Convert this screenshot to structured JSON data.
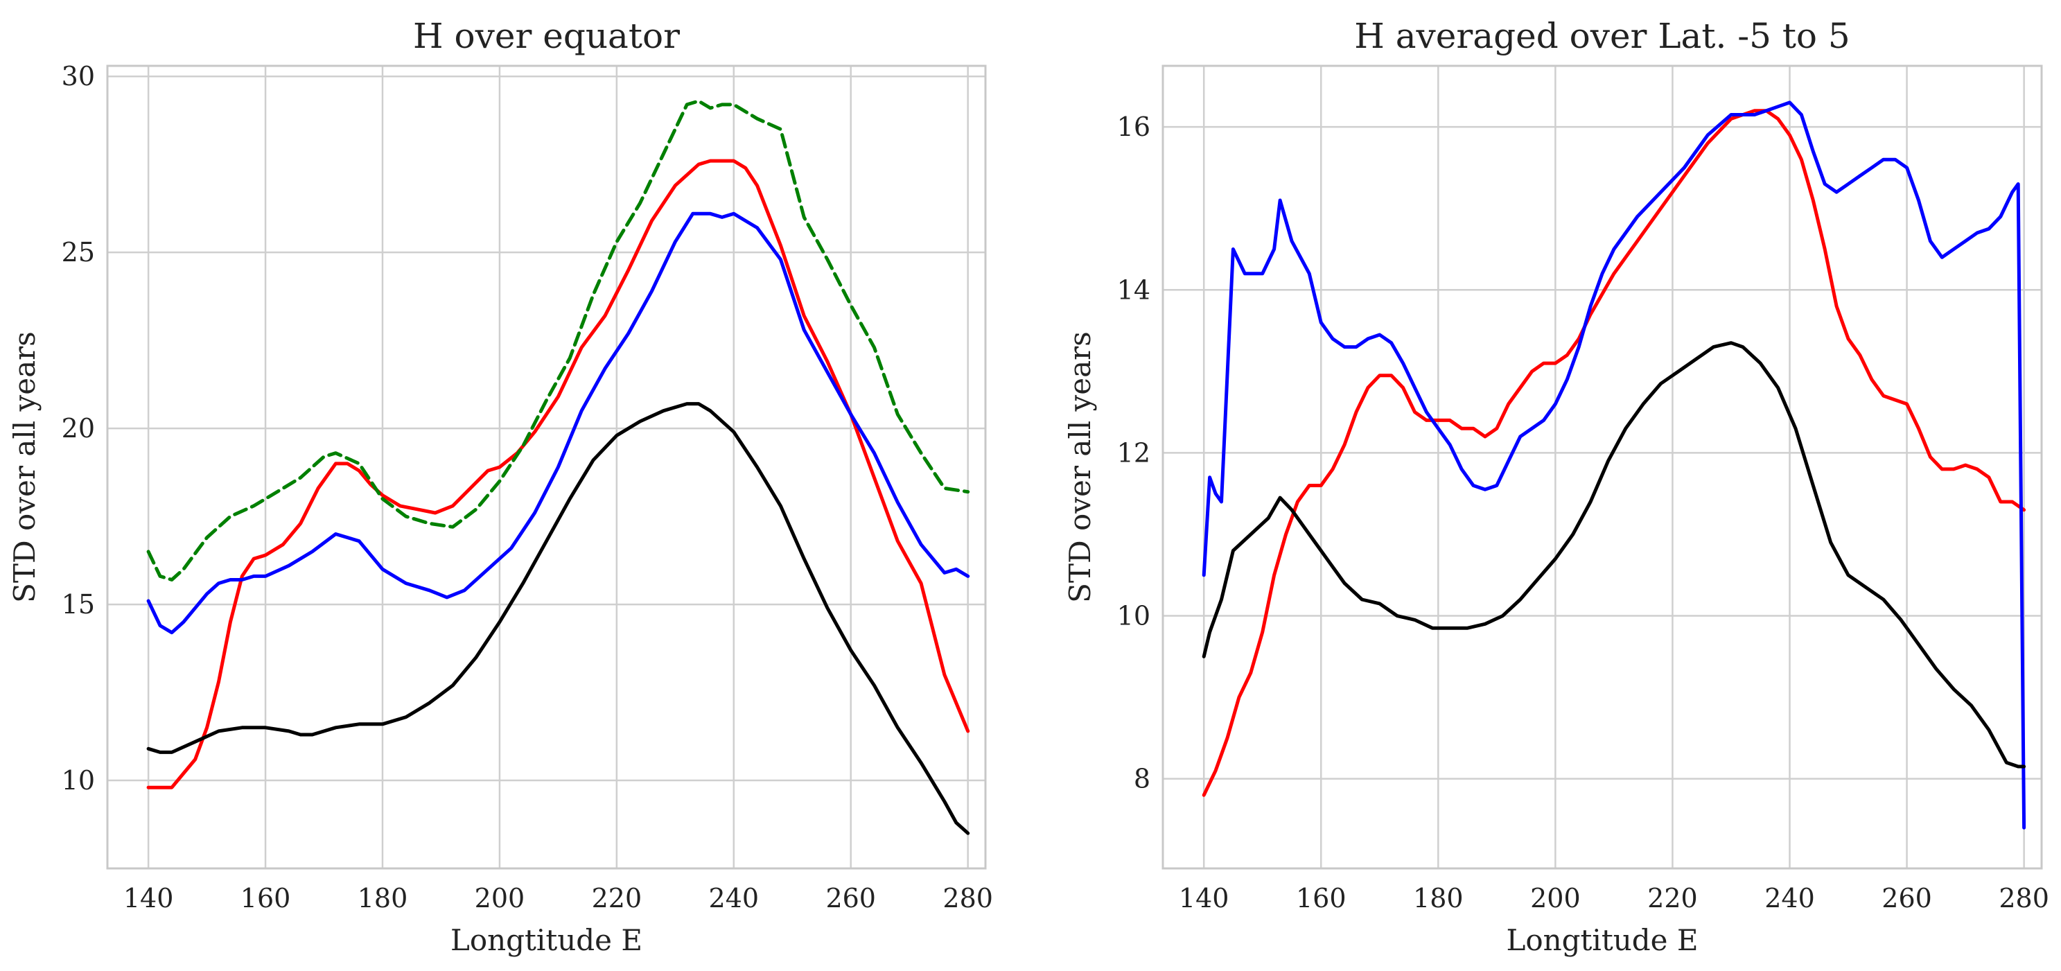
{
  "chart_data": [
    {
      "type": "line",
      "title": "H over equator",
      "xlabel": "Longtitude E",
      "ylabel": "STD over all years",
      "xlim": [
        133,
        283
      ],
      "ylim": [
        7.5,
        30.3
      ],
      "xticks": [
        140,
        160,
        180,
        200,
        220,
        240,
        260,
        280
      ],
      "yticks": [
        10,
        15,
        20,
        25,
        30
      ],
      "grid": true,
      "series": [
        {
          "name": "red",
          "color": "#ff0000",
          "dash": "solid",
          "x": [
            140,
            142,
            144,
            146,
            148,
            150,
            152,
            154,
            156,
            158,
            160,
            163,
            166,
            169,
            172,
            174,
            176,
            178,
            180,
            183,
            186,
            189,
            192,
            195,
            198,
            200,
            203,
            206,
            210,
            214,
            218,
            222,
            226,
            230,
            234,
            236,
            238,
            240,
            242,
            244,
            248,
            252,
            256,
            260,
            264,
            268,
            272,
            276,
            280
          ],
          "y": [
            9.8,
            9.8,
            9.8,
            10.2,
            10.6,
            11.5,
            12.8,
            14.5,
            15.8,
            16.3,
            16.4,
            16.7,
            17.3,
            18.3,
            19.0,
            19.0,
            18.8,
            18.4,
            18.1,
            17.8,
            17.7,
            17.6,
            17.8,
            18.3,
            18.8,
            18.9,
            19.3,
            19.9,
            20.9,
            22.3,
            23.2,
            24.5,
            25.9,
            26.9,
            27.5,
            27.6,
            27.6,
            27.6,
            27.4,
            26.9,
            25.2,
            23.2,
            21.9,
            20.4,
            18.6,
            16.8,
            15.6,
            13.0,
            11.4
          ]
        },
        {
          "name": "blue",
          "color": "#0000ff",
          "dash": "solid",
          "x": [
            140,
            142,
            144,
            146,
            148,
            150,
            152,
            154,
            156,
            158,
            160,
            164,
            168,
            172,
            176,
            180,
            184,
            188,
            191,
            194,
            198,
            202,
            206,
            210,
            214,
            218,
            222,
            226,
            230,
            233,
            236,
            238,
            240,
            242,
            244,
            248,
            252,
            256,
            260,
            264,
            268,
            272,
            276,
            278,
            280
          ],
          "y": [
            15.1,
            14.4,
            14.2,
            14.5,
            14.9,
            15.3,
            15.6,
            15.7,
            15.7,
            15.8,
            15.8,
            16.1,
            16.5,
            17.0,
            16.8,
            16.0,
            15.6,
            15.4,
            15.2,
            15.4,
            16.0,
            16.6,
            17.6,
            18.9,
            20.5,
            21.7,
            22.7,
            23.9,
            25.3,
            26.1,
            26.1,
            26.0,
            26.1,
            25.9,
            25.7,
            24.8,
            22.8,
            21.6,
            20.4,
            19.3,
            17.9,
            16.7,
            15.9,
            16.0,
            15.8
          ]
        },
        {
          "name": "green",
          "color": "#008000",
          "dash": "dashed",
          "x": [
            140,
            142,
            144,
            146,
            150,
            154,
            158,
            162,
            166,
            170,
            172,
            176,
            180,
            184,
            188,
            192,
            196,
            200,
            204,
            208,
            212,
            216,
            220,
            224,
            228,
            232,
            234,
            236,
            238,
            240,
            244,
            248,
            252,
            256,
            260,
            264,
            268,
            272,
            276,
            280
          ],
          "y": [
            16.5,
            15.8,
            15.7,
            16.0,
            16.9,
            17.5,
            17.8,
            18.2,
            18.6,
            19.2,
            19.3,
            19.0,
            18.0,
            17.5,
            17.3,
            17.2,
            17.7,
            18.5,
            19.5,
            20.8,
            22.0,
            23.8,
            25.3,
            26.4,
            27.8,
            29.2,
            29.3,
            29.1,
            29.2,
            29.2,
            28.8,
            28.5,
            26.0,
            24.8,
            23.5,
            22.3,
            20.4,
            19.3,
            18.3,
            18.2
          ]
        },
        {
          "name": "black",
          "color": "#000000",
          "dash": "solid",
          "x": [
            140,
            142,
            144,
            148,
            152,
            156,
            160,
            164,
            166,
            168,
            172,
            176,
            180,
            184,
            188,
            192,
            196,
            200,
            204,
            208,
            212,
            216,
            220,
            224,
            228,
            232,
            234,
            236,
            240,
            244,
            248,
            252,
            256,
            260,
            264,
            268,
            272,
            276,
            278,
            280
          ],
          "y": [
            10.9,
            10.8,
            10.8,
            11.1,
            11.4,
            11.5,
            11.5,
            11.4,
            11.3,
            11.3,
            11.5,
            11.6,
            11.6,
            11.8,
            12.2,
            12.7,
            13.5,
            14.5,
            15.6,
            16.8,
            18.0,
            19.1,
            19.8,
            20.2,
            20.5,
            20.7,
            20.7,
            20.5,
            19.9,
            18.9,
            17.8,
            16.3,
            14.9,
            13.7,
            12.7,
            11.5,
            10.5,
            9.4,
            8.8,
            8.5
          ]
        }
      ]
    },
    {
      "type": "line",
      "title": "H averaged over Lat. -5 to 5",
      "xlabel": "Longtitude E",
      "ylabel": "STD over all years",
      "xlim": [
        133,
        283
      ],
      "ylim": [
        6.9,
        16.75
      ],
      "xticks": [
        140,
        160,
        180,
        200,
        220,
        240,
        260,
        280
      ],
      "yticks": [
        8,
        10,
        12,
        14,
        16
      ],
      "grid": true,
      "series": [
        {
          "name": "red",
          "color": "#ff0000",
          "dash": "solid",
          "x": [
            140,
            142,
            144,
            146,
            148,
            150,
            152,
            154,
            156,
            158,
            160,
            162,
            164,
            166,
            168,
            170,
            172,
            174,
            176,
            178,
            180,
            182,
            184,
            186,
            188,
            190,
            192,
            194,
            196,
            198,
            200,
            202,
            204,
            206,
            210,
            214,
            218,
            222,
            226,
            230,
            234,
            236,
            238,
            240,
            242,
            244,
            246,
            248,
            250,
            252,
            254,
            256,
            258,
            260,
            262,
            264,
            266,
            268,
            270,
            272,
            274,
            276,
            278,
            280
          ],
          "y": [
            7.8,
            8.1,
            8.5,
            9.0,
            9.3,
            9.8,
            10.5,
            11.0,
            11.4,
            11.6,
            11.6,
            11.8,
            12.1,
            12.5,
            12.8,
            12.95,
            12.95,
            12.8,
            12.5,
            12.4,
            12.4,
            12.4,
            12.3,
            12.3,
            12.2,
            12.3,
            12.6,
            12.8,
            13.0,
            13.1,
            13.1,
            13.2,
            13.4,
            13.7,
            14.2,
            14.6,
            15.0,
            15.4,
            15.8,
            16.1,
            16.2,
            16.2,
            16.1,
            15.9,
            15.6,
            15.1,
            14.5,
            13.8,
            13.4,
            13.2,
            12.9,
            12.7,
            12.65,
            12.6,
            12.3,
            11.95,
            11.8,
            11.8,
            11.85,
            11.8,
            11.7,
            11.4,
            11.4,
            11.3
          ]
        },
        {
          "name": "blue",
          "color": "#0000ff",
          "dash": "solid",
          "x": [
            140,
            141,
            142,
            143,
            145,
            147,
            150,
            152,
            153,
            155,
            158,
            160,
            162,
            164,
            166,
            168,
            170,
            172,
            174,
            176,
            178,
            180,
            182,
            184,
            186,
            188,
            190,
            192,
            194,
            196,
            198,
            200,
            202,
            204,
            206,
            208,
            210,
            214,
            218,
            222,
            226,
            230,
            234,
            236,
            238,
            240,
            242,
            244,
            246,
            248,
            250,
            252,
            254,
            256,
            258,
            260,
            262,
            264,
            266,
            268,
            270,
            272,
            274,
            276,
            278,
            279,
            280
          ],
          "y": [
            10.5,
            11.7,
            11.5,
            11.4,
            14.5,
            14.2,
            14.2,
            14.5,
            15.1,
            14.6,
            14.2,
            13.6,
            13.4,
            13.3,
            13.3,
            13.4,
            13.45,
            13.35,
            13.1,
            12.8,
            12.5,
            12.3,
            12.1,
            11.8,
            11.6,
            11.55,
            11.6,
            11.9,
            12.2,
            12.3,
            12.4,
            12.6,
            12.9,
            13.3,
            13.8,
            14.2,
            14.5,
            14.9,
            15.2,
            15.5,
            15.9,
            16.15,
            16.15,
            16.2,
            16.25,
            16.3,
            16.15,
            15.7,
            15.3,
            15.2,
            15.3,
            15.4,
            15.5,
            15.6,
            15.6,
            15.5,
            15.1,
            14.6,
            14.4,
            14.5,
            14.6,
            14.7,
            14.75,
            14.9,
            15.2,
            15.3,
            7.4
          ]
        },
        {
          "name": "black",
          "color": "#000000",
          "dash": "solid",
          "x": [
            140,
            141,
            143,
            145,
            148,
            151,
            153,
            155,
            158,
            161,
            164,
            167,
            170,
            173,
            176,
            179,
            182,
            185,
            188,
            191,
            194,
            197,
            200,
            203,
            206,
            209,
            212,
            215,
            218,
            221,
            224,
            227,
            230,
            232,
            235,
            238,
            241,
            244,
            247,
            250,
            253,
            256,
            259,
            262,
            265,
            268,
            271,
            274,
            277,
            279,
            280
          ],
          "y": [
            9.5,
            9.8,
            10.2,
            10.8,
            11.0,
            11.2,
            11.45,
            11.3,
            11.0,
            10.7,
            10.4,
            10.2,
            10.15,
            10.0,
            9.95,
            9.85,
            9.85,
            9.85,
            9.9,
            10.0,
            10.2,
            10.45,
            10.7,
            11.0,
            11.4,
            11.9,
            12.3,
            12.6,
            12.85,
            13.0,
            13.15,
            13.3,
            13.35,
            13.3,
            13.1,
            12.8,
            12.3,
            11.6,
            10.9,
            10.5,
            10.35,
            10.2,
            9.95,
            9.65,
            9.35,
            9.1,
            8.9,
            8.6,
            8.2,
            8.15,
            8.15
          ]
        }
      ]
    }
  ]
}
